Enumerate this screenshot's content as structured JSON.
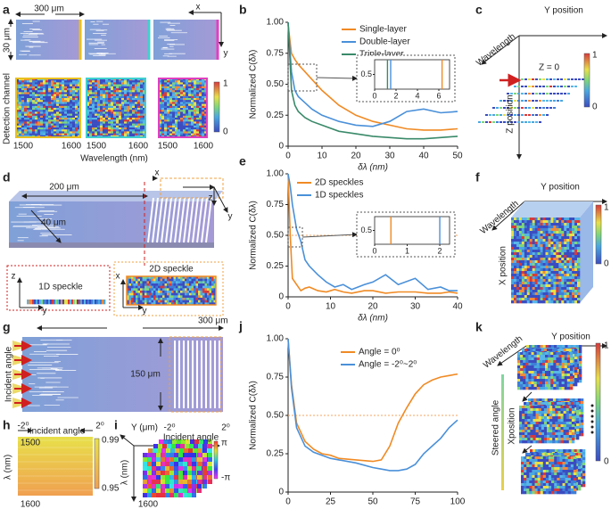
{
  "chart_data": [
    {
      "type": "line",
      "panel": "b",
      "xlabel": "δλ (nm)",
      "ylabel": "Normalized C(δλ)",
      "x": [
        0,
        1,
        2,
        3,
        5,
        7,
        10,
        15,
        20,
        25,
        30,
        35,
        40,
        45,
        50
      ],
      "series": [
        {
          "name": "Single-layer",
          "color": "#f08a24",
          "values": [
            0.98,
            0.75,
            0.7,
            0.66,
            0.6,
            0.54,
            0.45,
            0.33,
            0.25,
            0.2,
            0.17,
            0.14,
            0.13,
            0.13,
            0.14
          ]
        },
        {
          "name": "Double-layer",
          "color": "#4a90d9",
          "values": [
            1,
            0.6,
            0.45,
            0.4,
            0.35,
            0.3,
            0.25,
            0.2,
            0.17,
            0.16,
            0.2,
            0.28,
            0.3,
            0.27,
            0.28
          ]
        },
        {
          "name": "Triple-layer",
          "color": "#3a8a6a",
          "values": [
            1,
            0.45,
            0.33,
            0.28,
            0.23,
            0.2,
            0.17,
            0.12,
            0.1,
            0.08,
            0.07,
            0.06,
            0.06,
            0.07,
            0.08
          ]
        }
      ],
      "xlim": [
        0,
        50
      ],
      "xticks": [
        0,
        10,
        20,
        30,
        40,
        50
      ],
      "ylim": [
        0,
        1
      ],
      "yticks": [
        0,
        0.25,
        {
          "value": 0.5,
          "label": "0.50"
        },
        0.75,
        {
          "value": 1,
          "label": "1.00"
        }
      ],
      "legend": "upper right",
      "inset": {
        "xlim": [
          0,
          7
        ],
        "xticks": [
          0,
          2,
          4,
          6
        ],
        "ylim": [
          0,
          1
        ],
        "yticks": [
          0.5
        ],
        "values": [
          6.3,
          1.5,
          1.2
        ]
      }
    },
    {
      "type": "line",
      "panel": "e",
      "xlabel": "δλ (nm)",
      "ylabel": "Normalized C(δλ)",
      "x": [
        0,
        0.5,
        1,
        2,
        3,
        4,
        5,
        7,
        9,
        11,
        13,
        15,
        18,
        20,
        23,
        26,
        30,
        33,
        36,
        38,
        40
      ],
      "series": [
        {
          "name": "2D speckles",
          "color": "#f08a24",
          "values": [
            1,
            0.5,
            0.15,
            0.1,
            0.05,
            0.07,
            0.08,
            0.05,
            0.04,
            0.06,
            0.04,
            0.03,
            0.05,
            0.05,
            0.03,
            0.04,
            0.04,
            0.03,
            0.03,
            0.04,
            0.03
          ]
        },
        {
          "name": "1D speckles",
          "color": "#4a90d9",
          "values": [
            1,
            0.9,
            0.75,
            0.55,
            0.45,
            0.3,
            0.25,
            0.18,
            0.12,
            0.08,
            0.1,
            0.06,
            0.1,
            0.12,
            0.18,
            0.1,
            0.15,
            0.06,
            0.08,
            0.05,
            0.05
          ]
        }
      ],
      "xlim": [
        0,
        40
      ],
      "xticks": [
        0,
        10,
        20,
        30,
        40
      ],
      "ylim": [
        0,
        1
      ],
      "yticks": [
        0,
        0.25,
        {
          "value": 0.5,
          "label": "0.50"
        },
        0.75,
        {
          "value": 1,
          "label": "1.00"
        }
      ],
      "legend": "upper left",
      "reference_line": 0.5,
      "reference_color": "#f4a460",
      "inset": {
        "xlim": [
          0,
          2.3
        ],
        "xticks": [
          0,
          1,
          2
        ],
        "ylim": [
          0,
          1
        ],
        "yticks": [
          0.5
        ],
        "values": [
          0.5,
          2
        ]
      }
    },
    {
      "type": "line",
      "panel": "j",
      "xlabel": "δλ (nm)",
      "ylabel": "Normalized C(δλ)",
      "x": [
        0,
        2,
        5,
        10,
        15,
        20,
        25,
        30,
        40,
        50,
        55,
        60,
        65,
        70,
        75,
        80,
        85,
        90,
        95,
        100
      ],
      "series": [
        {
          "name": "Angle = 0⁰",
          "color": "#f08a24",
          "values": [
            1,
            0.7,
            0.45,
            0.33,
            0.28,
            0.25,
            0.24,
            0.22,
            0.21,
            0.2,
            0.21,
            0.3,
            0.45,
            0.55,
            0.64,
            0.7,
            0.73,
            0.75,
            0.76,
            0.77
          ]
        },
        {
          "name": "Angle = -2⁰~2⁰",
          "color": "#4a90d9",
          "values": [
            1,
            0.68,
            0.42,
            0.3,
            0.26,
            0.24,
            0.22,
            0.21,
            0.19,
            0.16,
            0.15,
            0.14,
            0.14,
            0.15,
            0.18,
            0.25,
            0.3,
            0.35,
            0.42,
            0.47
          ]
        }
      ],
      "xlim": [
        0,
        100
      ],
      "xticks": [
        0,
        25,
        50,
        75,
        100
      ],
      "ylim": [
        0,
        1
      ],
      "yticks": [
        0,
        0.25,
        {
          "value": 0.5,
          "label": "0.50"
        },
        0.75,
        {
          "value": 1,
          "label": "1.00"
        }
      ],
      "legend": "upper center",
      "reference_line": 0.5,
      "reference_color": "#f4a460"
    }
  ],
  "panels": [
    {
      "label": "a",
      "texts": [
        "300 μm",
        "30 μm",
        "Detection channel",
        "1500",
        "1600",
        "1500",
        "1600",
        "1500",
        "1600",
        "Wavelength (nm)",
        "1",
        "0",
        "x",
        "y"
      ]
    },
    {
      "label": "c",
      "texts": [
        "Y position",
        "Wavelength",
        "Z = 0",
        "Z position",
        "1",
        "0"
      ]
    },
    {
      "label": "d",
      "texts": [
        "x",
        "z",
        "200 μm",
        "40 μm",
        "y",
        "z",
        "1D speckle",
        "y",
        "x",
        "2D speckle",
        "y"
      ]
    },
    {
      "label": "f",
      "texts": [
        "Y position",
        "Wavelength",
        "X position",
        "1",
        "0"
      ]
    },
    {
      "label": "g",
      "texts": [
        "300 μm",
        "Incident angle",
        "150 μm"
      ]
    },
    {
      "label": "h",
      "texts": [
        "-2⁰",
        "Incident angle",
        "2⁰",
        "1500",
        "0.99",
        "λ (nm)",
        "1600",
        "0.95"
      ]
    },
    {
      "label": "i",
      "texts": [
        "Y (μm)",
        "-2⁰",
        "Incident angle",
        "2⁰",
        "π",
        "λ (nm)",
        "-π",
        "1600"
      ]
    },
    {
      "label": "k",
      "texts": [
        "Wavelength",
        "Y position",
        "Steered angle",
        "Xposition",
        "1",
        "0"
      ]
    }
  ]
}
